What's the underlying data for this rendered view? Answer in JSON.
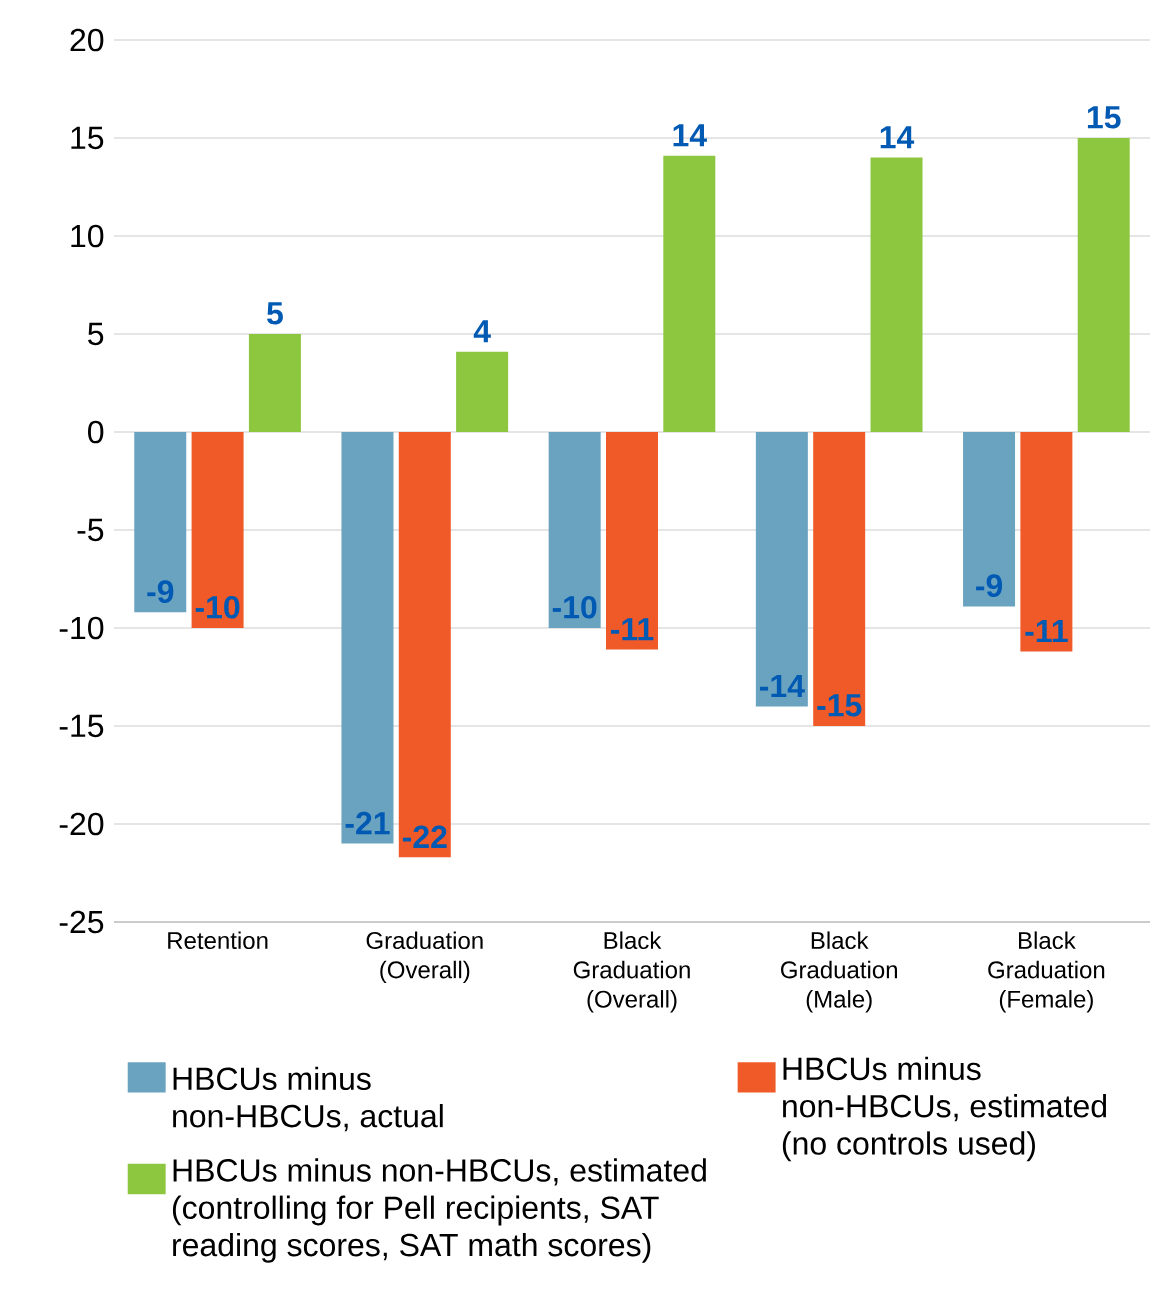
{
  "chart_data": {
    "type": "bar",
    "categories": [
      "Retention",
      "Graduation (Overall)",
      "Black Graduation (Overall)",
      "Black Graduation (Male)",
      "Black Graduation (Female)"
    ],
    "series": [
      {
        "name": "HBCUs minus non-HBCUs, actual",
        "color": "#6aa3c0",
        "values": [
          -9.2,
          -21,
          -10,
          -14,
          -8.9
        ],
        "value_labels": [
          "-9",
          "-21",
          "-10",
          "-14",
          "-9"
        ]
      },
      {
        "name": "HBCUs minus non-HBCUs, estimated (no controls used)",
        "color": "#f05a28",
        "values": [
          -10,
          -21.7,
          -11.1,
          -15,
          -11.2
        ],
        "value_labels": [
          "-10",
          "-22",
          "-11",
          "-15",
          "-11"
        ]
      },
      {
        "name": "HBCUs minus non-HBCUs, estimated (controlling for Pell recipients, SAT reading scores, SAT math scores)",
        "color": "#8dc63f",
        "values": [
          5,
          4.1,
          14.1,
          14,
          15
        ],
        "value_labels": [
          "5",
          "4",
          "14",
          "14",
          "15"
        ]
      }
    ],
    "ylim": [
      -25,
      20
    ],
    "yticks": [
      -25,
      -20,
      -15,
      -10,
      -5,
      0,
      5,
      10,
      15,
      20
    ],
    "grid": "y",
    "legend": "bottom"
  }
}
